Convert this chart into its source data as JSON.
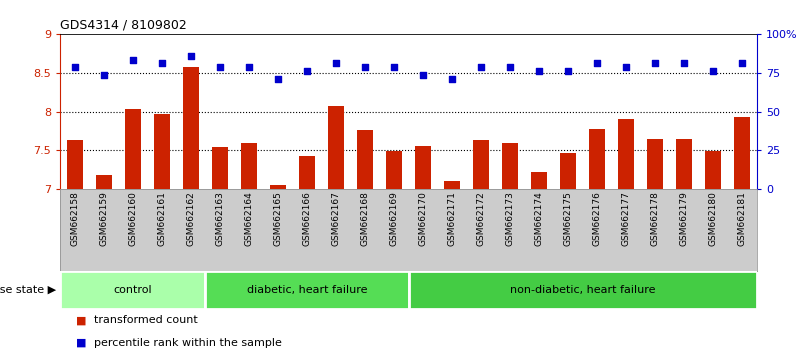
{
  "title": "GDS4314 / 8109802",
  "samples": [
    "GSM662158",
    "GSM662159",
    "GSM662160",
    "GSM662161",
    "GSM662162",
    "GSM662163",
    "GSM662164",
    "GSM662165",
    "GSM662166",
    "GSM662167",
    "GSM662168",
    "GSM662169",
    "GSM662170",
    "GSM662171",
    "GSM662172",
    "GSM662173",
    "GSM662174",
    "GSM662175",
    "GSM662176",
    "GSM662177",
    "GSM662178",
    "GSM662179",
    "GSM662180",
    "GSM662181"
  ],
  "bar_values": [
    7.63,
    7.18,
    8.03,
    7.97,
    8.57,
    7.54,
    7.59,
    7.05,
    7.43,
    8.07,
    7.76,
    7.49,
    7.55,
    7.1,
    7.63,
    7.6,
    7.22,
    7.47,
    7.78,
    7.9,
    7.64,
    7.64,
    7.49,
    7.93
  ],
  "dot_values": [
    8.57,
    8.47,
    8.67,
    8.62,
    8.72,
    8.57,
    8.57,
    8.42,
    8.52,
    8.62,
    8.57,
    8.57,
    8.47,
    8.42,
    8.57,
    8.57,
    8.52,
    8.52,
    8.62,
    8.57,
    8.62,
    8.62,
    8.52,
    8.62
  ],
  "bar_color": "#cc2200",
  "dot_color": "#0000cc",
  "ylim_left": [
    7.0,
    9.0
  ],
  "ylim_right": [
    0,
    100
  ],
  "yticks_left": [
    7.0,
    7.5,
    8.0,
    8.5,
    9.0
  ],
  "ytick_left_labels": [
    "7",
    "7.5",
    "8",
    "8.5",
    "9"
  ],
  "yticks_right": [
    0,
    25,
    50,
    75,
    100
  ],
  "ytick_right_labels": [
    "0",
    "25",
    "50",
    "75",
    "100%"
  ],
  "hlines": [
    7.5,
    8.0,
    8.5
  ],
  "groups": [
    {
      "label": "control",
      "start": 0,
      "end": 5,
      "color": "#aaffaa"
    },
    {
      "label": "diabetic, heart failure",
      "start": 5,
      "end": 12,
      "color": "#55dd55"
    },
    {
      "label": "non-diabetic, heart failure",
      "start": 12,
      "end": 24,
      "color": "#44cc44"
    }
  ],
  "legend_items": [
    {
      "label": "transformed count",
      "color": "#cc2200"
    },
    {
      "label": "percentile rank within the sample",
      "color": "#0000cc"
    }
  ],
  "disease_state_label": "disease state",
  "sample_band_color": "#cccccc",
  "plot_bg_color": "#ffffff"
}
